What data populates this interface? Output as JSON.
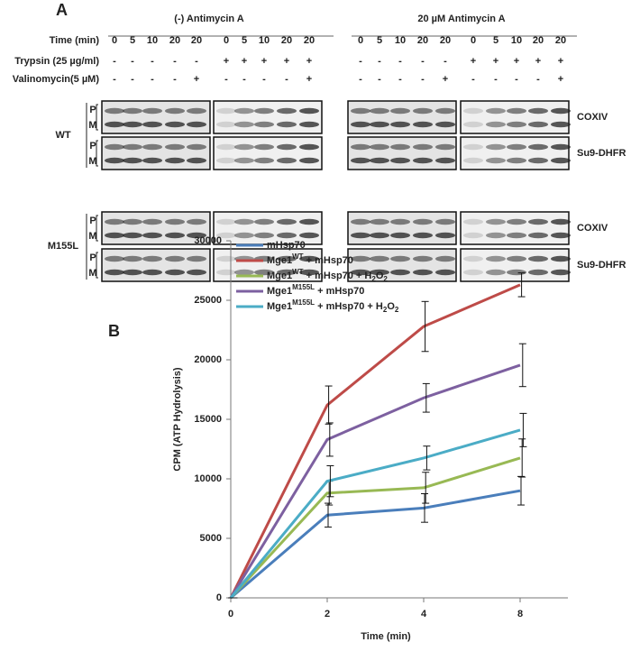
{
  "panel_a": {
    "label": "A",
    "row_headers": [
      "Time (min)",
      "Trypsin (25 µg/ml)",
      "Valinomycin(5 µM)"
    ],
    "conditions": [
      {
        "title": "(-) Antimycin A",
        "time": [
          "0",
          "5",
          "10",
          "20",
          "20",
          "0",
          "5",
          "10",
          "20",
          "20"
        ],
        "trypsin": [
          "-",
          "-",
          "-",
          "-",
          "-",
          "+",
          "+",
          "+",
          "+",
          "+"
        ],
        "valinomycin": [
          "-",
          "-",
          "-",
          "-",
          "+",
          "-",
          "-",
          "-",
          "-",
          "+"
        ]
      },
      {
        "title": "20 µM Antimycin A",
        "time": [
          "0",
          "5",
          "10",
          "20",
          "20",
          "0",
          "5",
          "10",
          "20",
          "20"
        ],
        "trypsin": [
          "-",
          "-",
          "-",
          "-",
          "-",
          "+",
          "+",
          "+",
          "+",
          "+"
        ],
        "valinomycin": [
          "-",
          "-",
          "-",
          "-",
          "+",
          "-",
          "-",
          "-",
          "-",
          "+"
        ]
      }
    ],
    "strains": [
      {
        "name": "WT",
        "blots": [
          {
            "protein": "COXIV",
            "bands": [
              "P",
              "M"
            ]
          },
          {
            "protein": "Su9-DHFR",
            "bands": [
              "P",
              "M"
            ]
          }
        ]
      },
      {
        "name": "M155L",
        "blots": [
          {
            "protein": "COXIV",
            "bands": [
              "P",
              "M"
            ]
          },
          {
            "protein": "Su9-DHFR",
            "bands": [
              "P",
              "M"
            ]
          }
        ]
      }
    ]
  },
  "panel_b": {
    "label": "B"
  },
  "chart_data": {
    "type": "line",
    "x_label": "Time (min)",
    "y_label": "CPM (ATP Hydrolysis)",
    "categories": [
      "0",
      "2",
      "4",
      "8"
    ],
    "ylim": [
      0,
      30000
    ],
    "yticks": [
      0,
      5000,
      10000,
      15000,
      20000,
      25000,
      30000
    ],
    "legend": "upper left",
    "series": [
      {
        "name": [
          {
            "text": "mHsp70"
          }
        ],
        "color": "#4a7ebb",
        "values": [
          0,
          6950,
          7550,
          9000
        ],
        "errors": [
          0,
          1000,
          1200,
          1200
        ]
      },
      {
        "name": [
          {
            "text": "Mge1"
          },
          {
            "text": "WT",
            "script": "super"
          },
          {
            "text": " + mHsp70"
          }
        ],
        "color": "#be4b48",
        "values": [
          0,
          16200,
          22800,
          26300
        ],
        "errors": [
          0,
          1600,
          2100,
          1000
        ]
      },
      {
        "name": [
          {
            "text": "Mge1"
          },
          {
            "text": "WT",
            "script": "super"
          },
          {
            "text": " + mHsp70 + H"
          },
          {
            "text": "2",
            "script": "sub"
          },
          {
            "text": "O"
          },
          {
            "text": "2",
            "script": "sub"
          }
        ],
        "color": "#98b954",
        "values": [
          0,
          8800,
          9250,
          11750
        ],
        "errors": [
          0,
          1000,
          1300,
          1600
        ]
      },
      {
        "name": [
          {
            "text": "Mge1"
          },
          {
            "text": "M155L",
            "script": "super"
          },
          {
            "text": " + mHsp70"
          }
        ],
        "color": "#7d60a0",
        "values": [
          0,
          13300,
          16800,
          19550
        ],
        "errors": [
          0,
          1400,
          1200,
          1800
        ]
      },
      {
        "name": [
          {
            "text": "Mge1"
          },
          {
            "text": "M155L",
            "script": "super"
          },
          {
            "text": " + mHsp70 + H"
          },
          {
            "text": "2",
            "script": "sub"
          },
          {
            "text": "O"
          },
          {
            "text": "2",
            "script": "sub"
          }
        ],
        "color": "#4bacc6",
        "values": [
          0,
          9800,
          11750,
          14100
        ],
        "errors": [
          0,
          1300,
          1000,
          1400
        ]
      }
    ]
  }
}
